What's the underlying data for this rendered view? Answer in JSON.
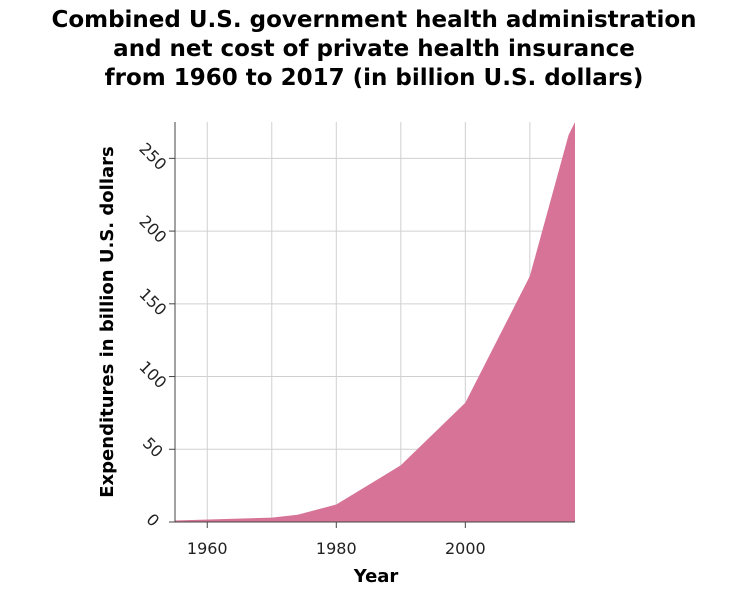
{
  "chart_data": {
    "type": "area",
    "title_lines": [
      "Combined U.S. government health administration",
      "and net cost of private health insurance",
      "from 1960 to 2017 (in billion U.S. dollars)"
    ],
    "xlabel": "Year",
    "ylabel": "Expenditures in billion U.S. dollars",
    "xlim": [
      1955,
      2017
    ],
    "ylim": [
      0,
      275
    ],
    "xticks": [
      1960,
      1980,
      2000
    ],
    "yticks": [
      0,
      50,
      100,
      150,
      200,
      250
    ],
    "grid": true,
    "fill_color": "#d67396",
    "series": [
      {
        "x": [
          1955,
          1970,
          1974,
          1980,
          1990,
          2000,
          2010,
          2016,
          2017
        ],
        "y": [
          1,
          3,
          5,
          12,
          39,
          82,
          169,
          266,
          275
        ]
      }
    ]
  }
}
